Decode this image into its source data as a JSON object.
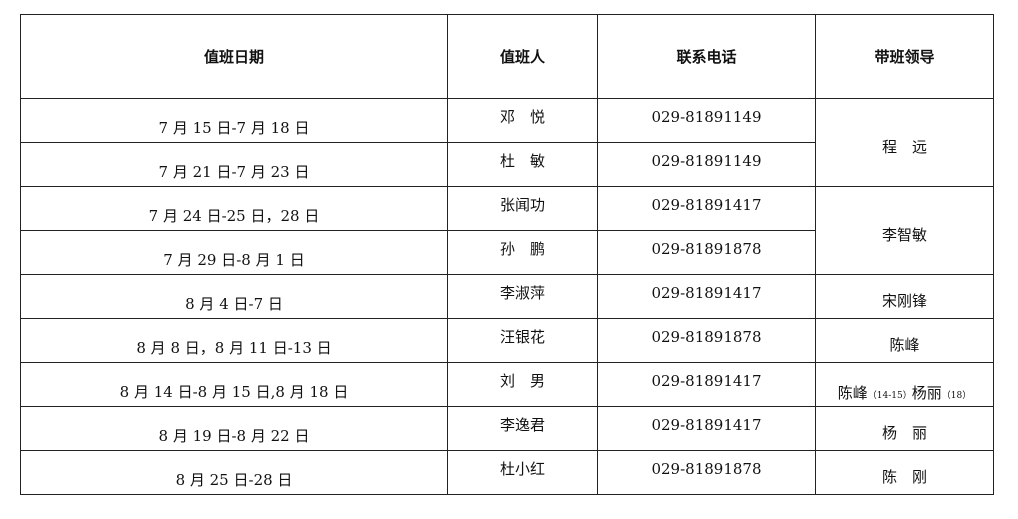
{
  "headers": {
    "date": "值班日期",
    "person": "值班人",
    "phone": "联系电话",
    "leader": "带班领导"
  },
  "rows": [
    {
      "date": "7 月 15 日-7 月 18 日",
      "person": "邓　悦",
      "phone": "029-81891149"
    },
    {
      "date": "7 月 21 日-7 月 23 日",
      "person": "杜　敏",
      "phone": "029-81891149"
    },
    {
      "date": "7 月 24 日-25 日，28 日",
      "person": "张闻功",
      "phone": "029-81891417"
    },
    {
      "date": "7 月 29 日-8 月 1 日",
      "person": "孙　鹏",
      "phone": "029-81891878"
    },
    {
      "date": "8 月 4 日-7 日",
      "person": "李淑萍",
      "phone": "029-81891417"
    },
    {
      "date": "8 月 8 日，8 月 11 日-13 日",
      "person": "汪银花",
      "phone": "029-81891878"
    },
    {
      "date": "8 月 14 日-8 月 15 日,8 月 18 日",
      "person": "刘　男",
      "phone": "029-81891417"
    },
    {
      "date": "8 月 19 日-8 月 22 日",
      "person": "李逸君",
      "phone": "029-81891417"
    },
    {
      "date": "8 月 25 日-28 日",
      "person": "杜小红",
      "phone": "029-81891878"
    }
  ],
  "leaders": {
    "l1": "程　远",
    "l2": "李智敏",
    "l3": "宋刚锋",
    "l4": "陈峰",
    "l5a": "陈峰",
    "l5a_note": "（14-15）",
    "l5b": "杨丽",
    "l5b_note": "（18）",
    "l6": "杨　丽",
    "l7": "陈　刚"
  }
}
